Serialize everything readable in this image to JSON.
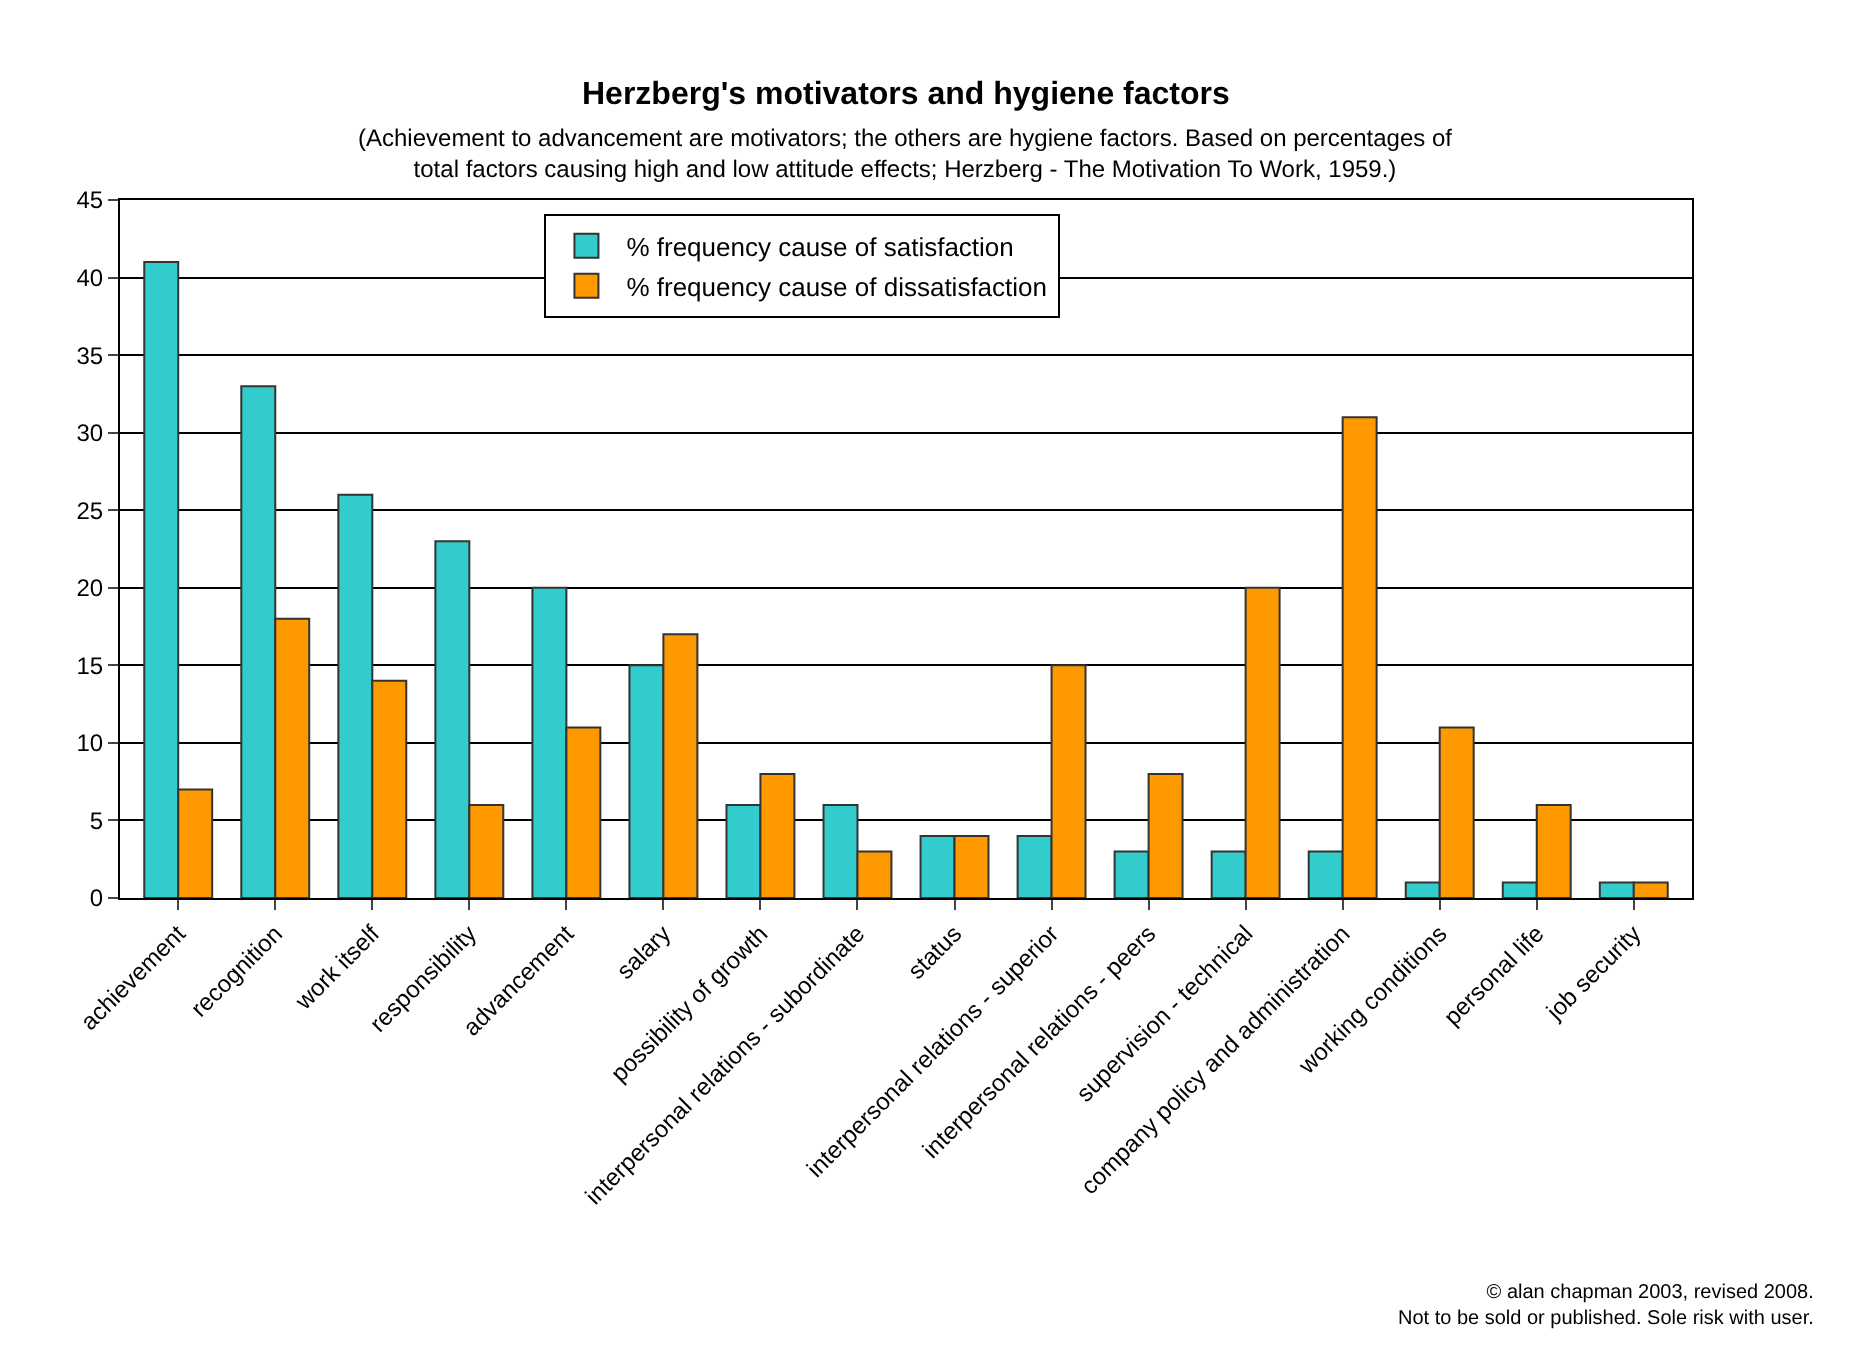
{
  "chart_data": {
    "type": "bar",
    "title": "Herzberg's motivators and hygiene factors",
    "subtitle": "(Achievement to advancement are motivators; the others are hygiene factors. Based on percentages of total factors causing high and low attitude effects; Herzberg - The Motivation To Work, 1959.)",
    "categories": [
      "achievement",
      "recognition",
      "work itself",
      "responsibility",
      "advancement",
      "salary",
      "possibility of growth",
      "interpersonal relations - subordinate",
      "status",
      "interpersonal relations - superior",
      "interpersonal relations - peers",
      "supervision - technical",
      "company policy and administration",
      "working conditions",
      "personal life",
      "job security"
    ],
    "series": [
      {
        "name": "% frequency cause of satisfaction",
        "color": "#33cccc",
        "values": [
          41,
          33,
          26,
          23,
          20,
          15,
          6,
          6,
          4,
          4,
          3,
          3,
          3,
          1,
          1,
          1
        ]
      },
      {
        "name": "% frequency cause of dissatisfaction",
        "color": "#ff9900",
        "values": [
          7,
          18,
          14,
          6,
          11,
          17,
          8,
          3,
          4,
          15,
          8,
          20,
          31,
          11,
          6,
          1
        ]
      }
    ],
    "ylim": [
      0,
      45
    ],
    "yticks": [
      0,
      5,
      10,
      15,
      20,
      25,
      30,
      35,
      40,
      45
    ],
    "grid": "y",
    "legend": "top",
    "annotations": [
      "© alan chapman 2003, revised 2008.",
      "Not to be sold or published. Sole risk with user."
    ]
  }
}
